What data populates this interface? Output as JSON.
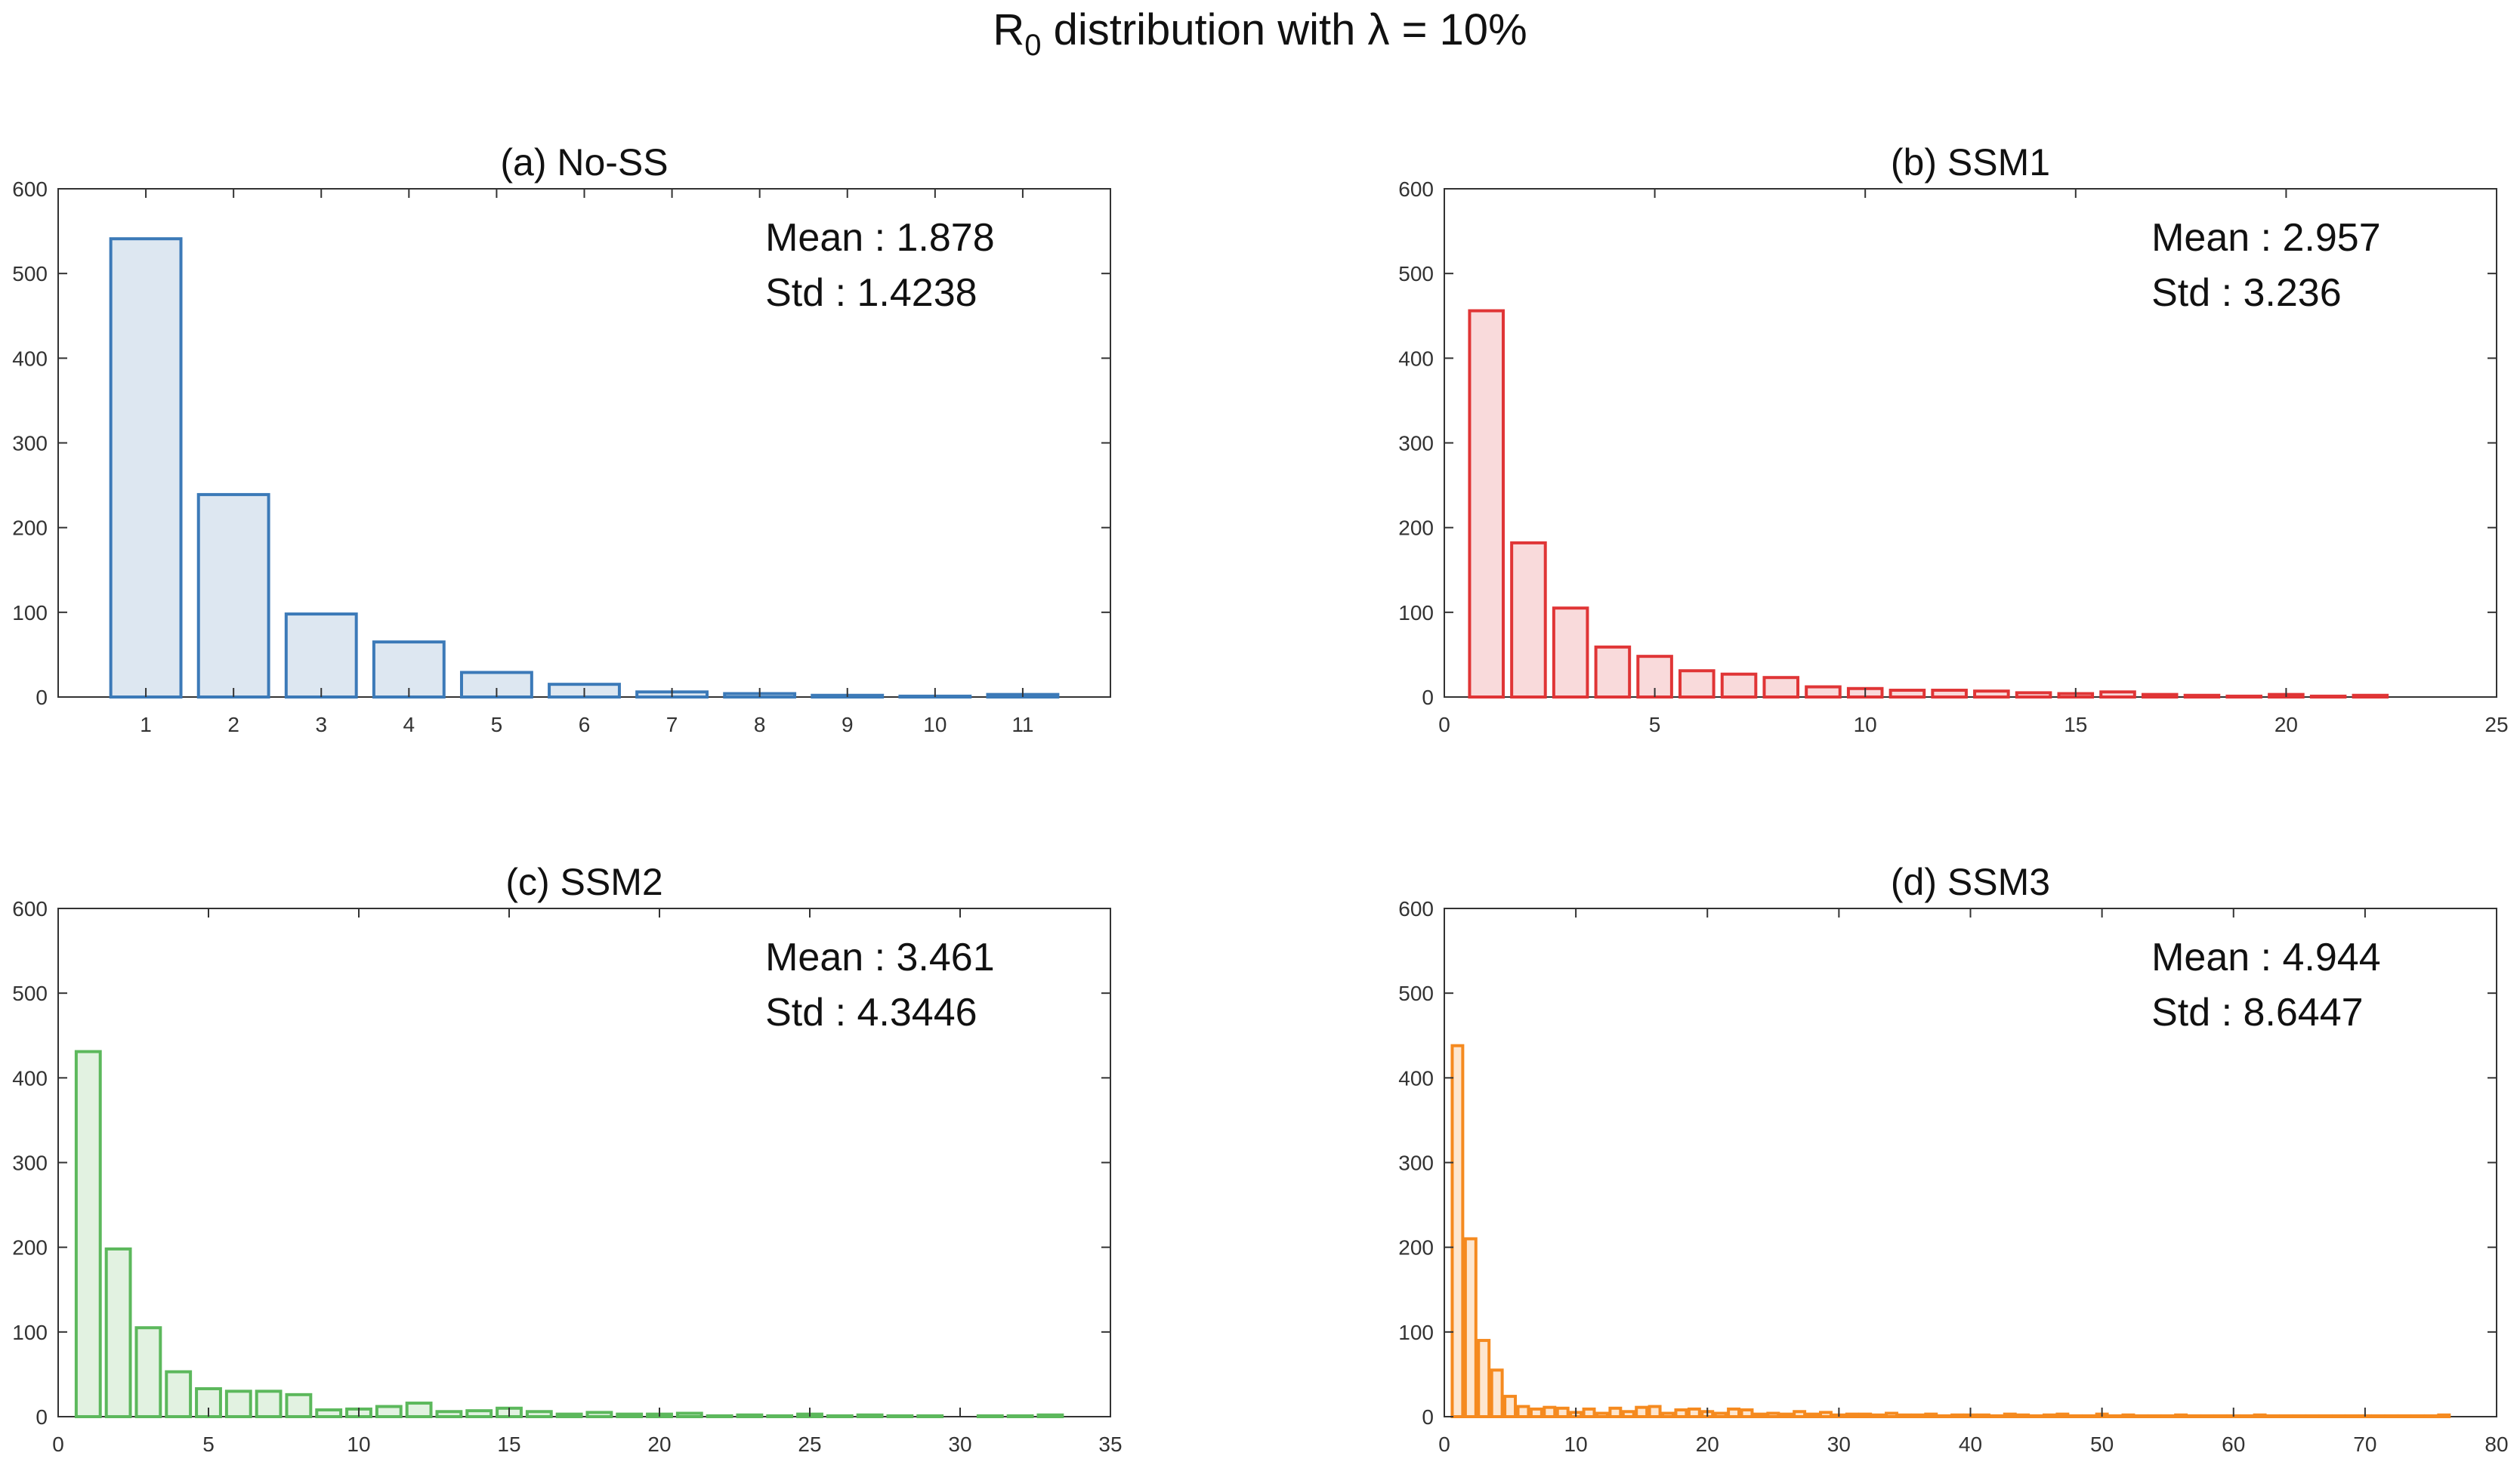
{
  "figure": {
    "title_base": "R",
    "title_sub": "0",
    "title_rest": " distribution with λ = 10%"
  },
  "chart_data": [
    {
      "type": "bar",
      "title": "(a) No-SS",
      "color": "#3c7ab8",
      "fill": "#dde7f1",
      "xlim": [
        0,
        12
      ],
      "xticks": [
        1,
        2,
        3,
        4,
        5,
        6,
        7,
        8,
        9,
        10,
        11
      ],
      "ylim": [
        0,
        600
      ],
      "yticks": [
        0,
        100,
        200,
        300,
        400,
        500,
        600
      ],
      "x": [
        1,
        2,
        3,
        4,
        5,
        6,
        7,
        8,
        9,
        10,
        11
      ],
      "values": [
        541,
        239,
        98,
        65,
        29,
        15,
        6,
        4,
        2,
        1,
        3
      ],
      "stats": {
        "mean": "Mean : 1.878",
        "std": "Std : 1.4238"
      }
    },
    {
      "type": "bar",
      "title": "(b) SSM1",
      "color": "#e03536",
      "fill": "#f9dadb",
      "xlim": [
        0,
        25
      ],
      "xticks": [
        0,
        5,
        10,
        15,
        20,
        25
      ],
      "ylim": [
        0,
        600
      ],
      "yticks": [
        0,
        100,
        200,
        300,
        400,
        500,
        600
      ],
      "x": [
        1,
        2,
        3,
        4,
        5,
        6,
        7,
        8,
        9,
        10,
        11,
        12,
        13,
        14,
        15,
        16,
        17,
        18,
        19,
        20,
        21,
        22
      ],
      "values": [
        456,
        182,
        105,
        59,
        48,
        31,
        27,
        23,
        12,
        10,
        8,
        8,
        7,
        5,
        4,
        6,
        3,
        2,
        1,
        3,
        1,
        2
      ],
      "stats": {
        "mean": "Mean : 2.957",
        "std": "Std : 3.236"
      }
    },
    {
      "type": "bar",
      "title": "(c) SSM2",
      "color": "#5cb85c",
      "fill": "#e2f2e1",
      "xlim": [
        0,
        35
      ],
      "xticks": [
        0,
        5,
        10,
        15,
        20,
        25,
        30,
        35
      ],
      "ylim": [
        0,
        600
      ],
      "yticks": [
        0,
        100,
        200,
        300,
        400,
        500,
        600
      ],
      "x": [
        1,
        2,
        3,
        4,
        5,
        6,
        7,
        8,
        9,
        10,
        11,
        12,
        13,
        14,
        15,
        16,
        17,
        18,
        19,
        20,
        21,
        22,
        23,
        24,
        25,
        26,
        27,
        28,
        29,
        30,
        31,
        32,
        33
      ],
      "values": [
        431,
        198,
        105,
        53,
        33,
        30,
        30,
        26,
        8,
        9,
        12,
        16,
        6,
        7,
        10,
        6,
        3,
        5,
        3,
        3,
        4,
        1,
        2,
        1,
        3,
        1,
        2,
        1,
        1,
        0,
        1,
        1,
        2
      ],
      "stats": {
        "mean": "Mean : 3.461",
        "std": "Std : 4.3446"
      }
    },
    {
      "type": "bar",
      "title": "(d) SSM3",
      "color": "#f58a1f",
      "fill": "#fde6cf",
      "xlim": [
        0,
        80
      ],
      "xticks": [
        0,
        10,
        20,
        30,
        40,
        50,
        60,
        70,
        80
      ],
      "ylim": [
        0,
        600
      ],
      "yticks": [
        0,
        100,
        200,
        300,
        400,
        500,
        600
      ],
      "x": [
        1,
        2,
        3,
        4,
        5,
        6,
        7,
        8,
        9,
        10,
        11,
        12,
        13,
        14,
        15,
        16,
        17,
        18,
        19,
        20,
        21,
        22,
        23,
        24,
        25,
        26,
        27,
        28,
        29,
        30,
        31,
        32,
        33,
        34,
        35,
        36,
        37,
        38,
        39,
        40,
        41,
        42,
        43,
        44,
        45,
        46,
        47,
        48,
        49,
        50,
        51,
        52,
        53,
        54,
        55,
        56,
        57,
        58,
        59,
        60,
        61,
        62,
        63,
        64,
        65,
        66,
        67,
        68,
        69,
        70,
        71,
        72,
        73,
        74,
        75,
        76
      ],
      "values": [
        438,
        210,
        90,
        55,
        24,
        12,
        9,
        11,
        10,
        5,
        9,
        4,
        10,
        6,
        11,
        12,
        4,
        8,
        9,
        6,
        4,
        9,
        8,
        3,
        4,
        3,
        6,
        3,
        5,
        2,
        3,
        3,
        2,
        4,
        2,
        2,
        3,
        1,
        2,
        2,
        2,
        1,
        3,
        2,
        1,
        2,
        3,
        1,
        1,
        3,
        1,
        2,
        1,
        1,
        1,
        2,
        1,
        1,
        1,
        1,
        1,
        2,
        1,
        1,
        1,
        1,
        1,
        1,
        1,
        1,
        1,
        1,
        1,
        1,
        1,
        2
      ],
      "stats": {
        "mean": "Mean : 4.944",
        "std": "Std : 8.6447"
      }
    }
  ]
}
